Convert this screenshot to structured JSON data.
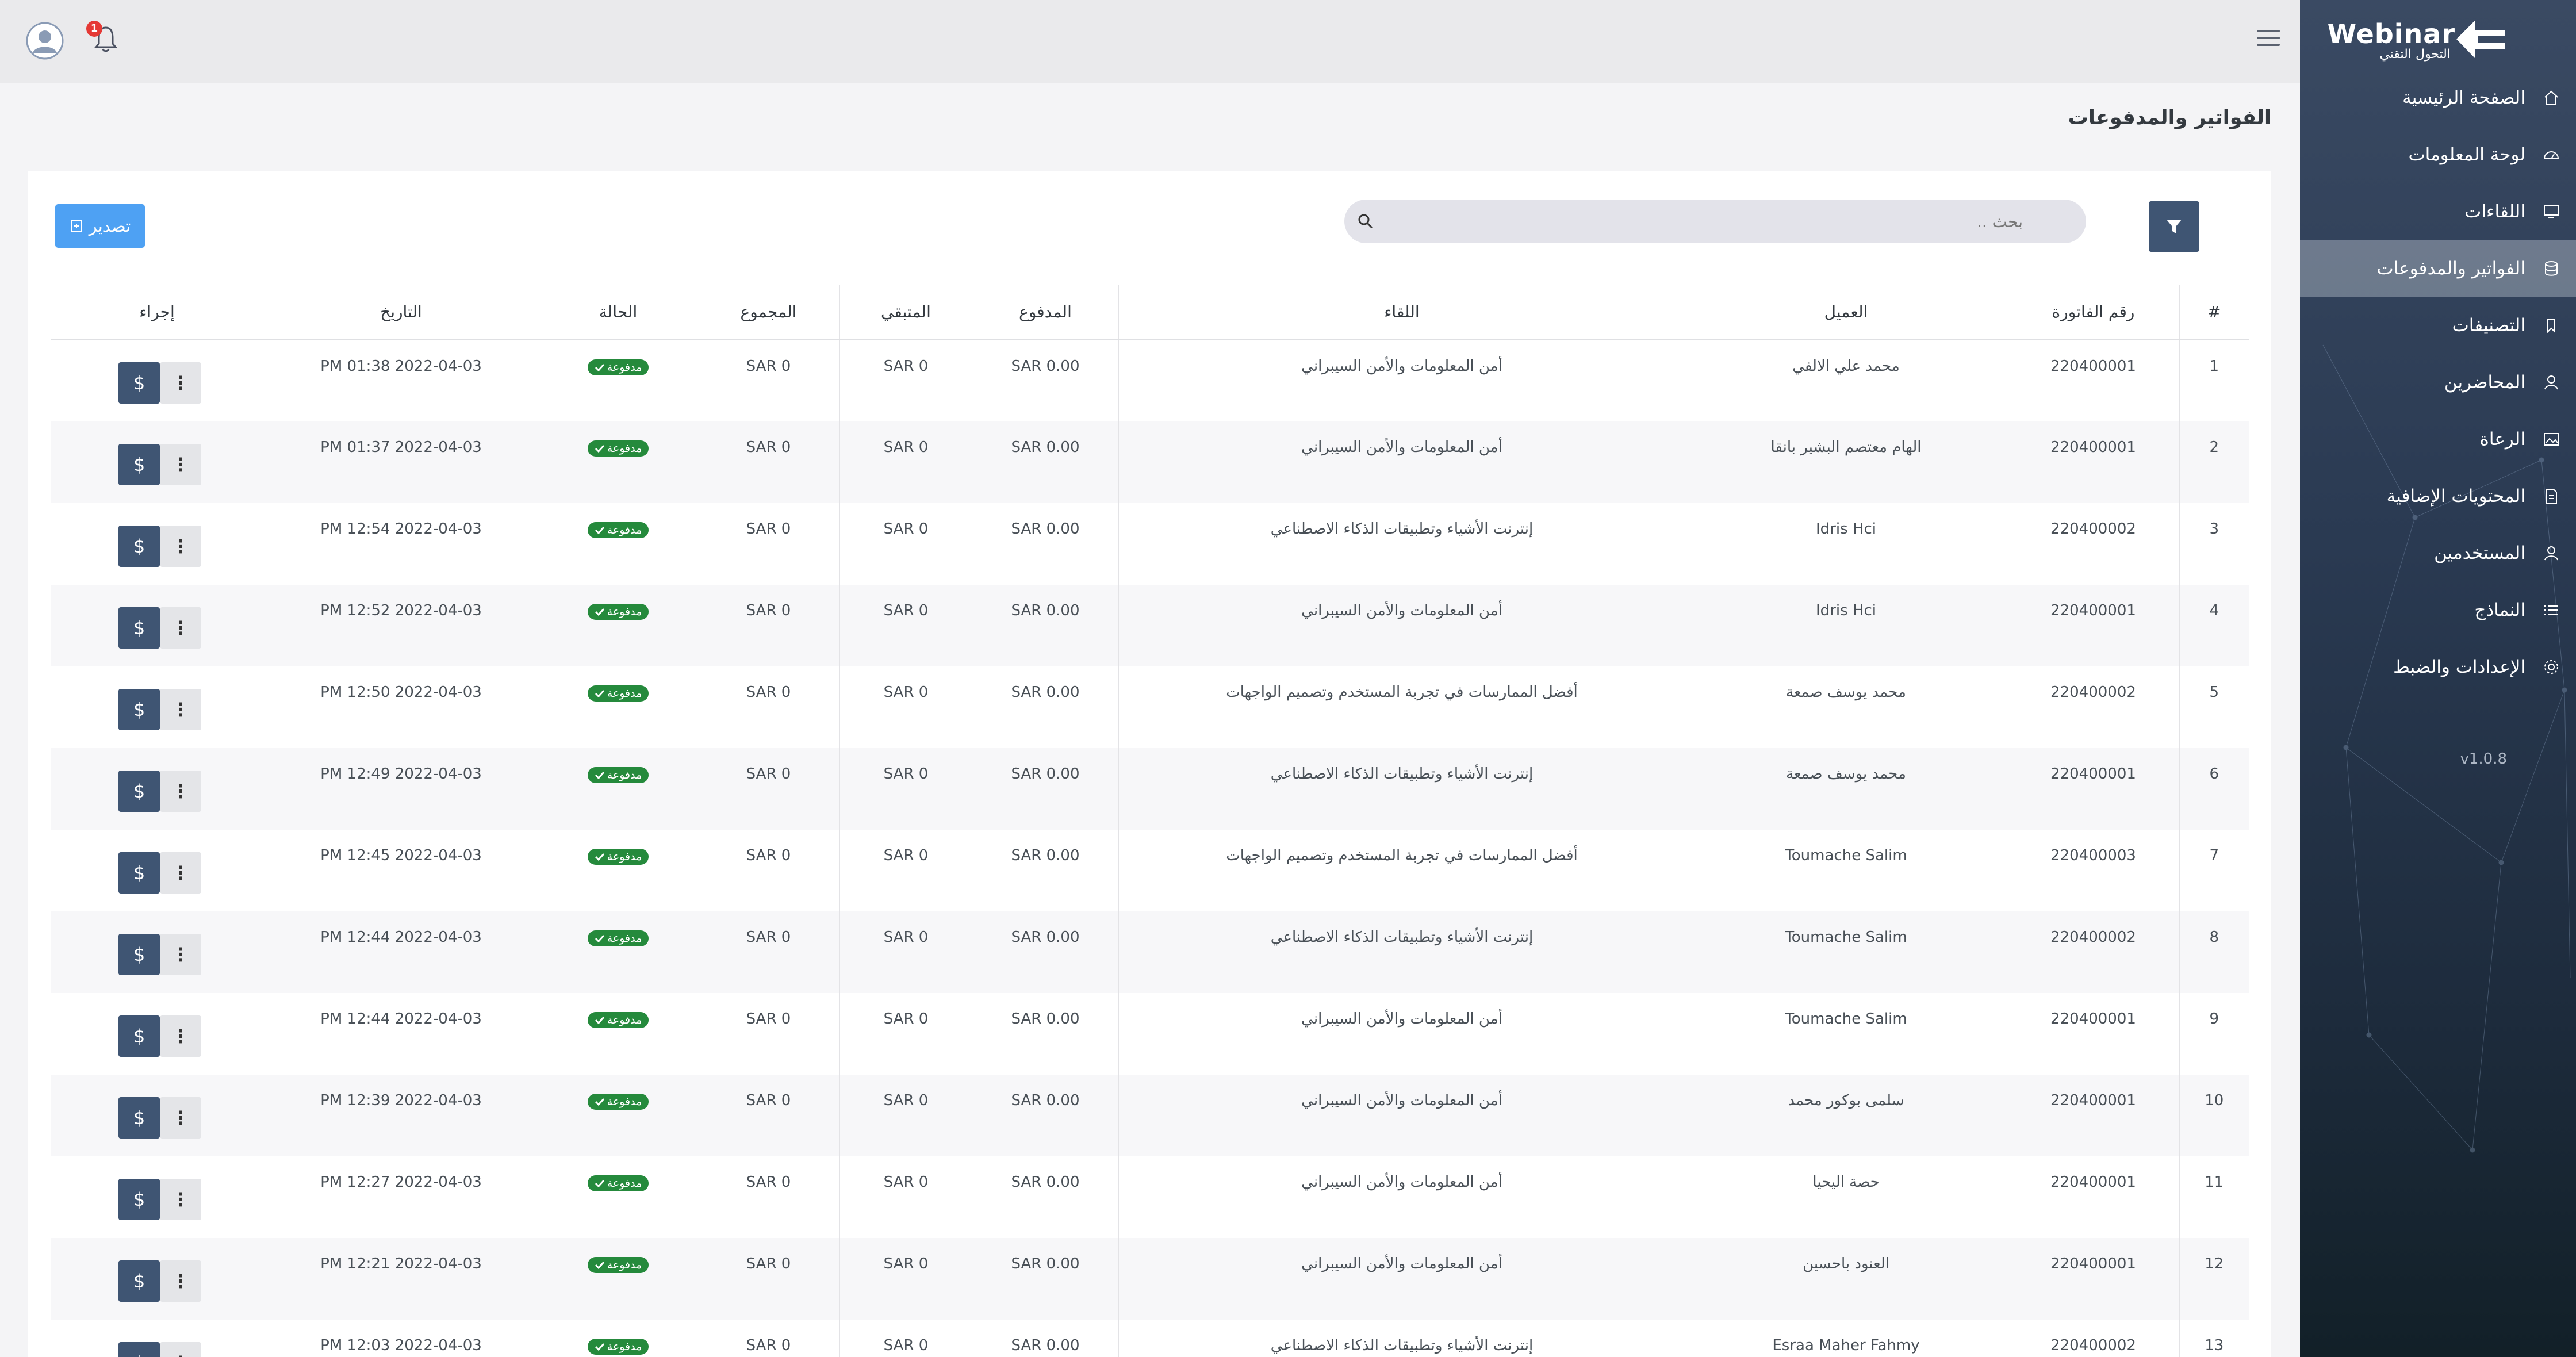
{
  "app": {
    "logo_text": "Webinar",
    "logo_subtext": "التحول التقني",
    "version": "v1.0.8"
  },
  "header": {
    "notification_count": "1"
  },
  "sidebar": {
    "items": [
      {
        "label": "الصفحة الرئيسية",
        "icon": "home-icon"
      },
      {
        "label": "لوحة المعلومات",
        "icon": "dashboard-icon"
      },
      {
        "label": "اللقاءات",
        "icon": "monitor-icon"
      },
      {
        "label": "الفواتير والمدفوعات",
        "icon": "database-icon",
        "active": true
      },
      {
        "label": "التصنيفات",
        "icon": "bookmark-icon"
      },
      {
        "label": "المحاضرين",
        "icon": "user-icon"
      },
      {
        "label": "الرعاة",
        "icon": "image-icon"
      },
      {
        "label": "المحتويات الإضافية",
        "icon": "file-icon"
      },
      {
        "label": "المستخدمين",
        "icon": "user-icon"
      },
      {
        "label": "النماذج",
        "icon": "list-icon"
      },
      {
        "label": "الإعدادات والضبط",
        "icon": "gear-icon"
      }
    ]
  },
  "page": {
    "title": "الفواتير والمدفوعات"
  },
  "toolbar": {
    "search_placeholder": "بحث ..",
    "export_label": "تصدير"
  },
  "table": {
    "columns": [
      "#",
      "رقم الفاتورة",
      "العميل",
      "اللقاء",
      "المدفوع",
      "المتبقي",
      "المجموع",
      "الحالة",
      "التاريخ",
      "إجراء"
    ],
    "status_label": "مدفوعة",
    "rows": [
      {
        "n": "1",
        "invoice": "220400001",
        "client": "محمد علي الالفي",
        "meeting": "أمن المعلومات والأمن السيبراني",
        "paid": "0.00 SAR",
        "remaining": "0 SAR",
        "total": "0 SAR",
        "date": "2022-04-03 01:38 PM"
      },
      {
        "n": "2",
        "invoice": "220400001",
        "client": "الهام معتصم البشير بانقا",
        "meeting": "أمن المعلومات والأمن السيبراني",
        "paid": "0.00 SAR",
        "remaining": "0 SAR",
        "total": "0 SAR",
        "date": "2022-04-03 01:37 PM"
      },
      {
        "n": "3",
        "invoice": "220400002",
        "client": "Idris Hci",
        "meeting": "إنترنت الأشياء وتطبيقات الذكاء الاصطناعي",
        "paid": "0.00 SAR",
        "remaining": "0 SAR",
        "total": "0 SAR",
        "date": "2022-04-03 12:54 PM"
      },
      {
        "n": "4",
        "invoice": "220400001",
        "client": "Idris Hci",
        "meeting": "أمن المعلومات والأمن السيبراني",
        "paid": "0.00 SAR",
        "remaining": "0 SAR",
        "total": "0 SAR",
        "date": "2022-04-03 12:52 PM"
      },
      {
        "n": "5",
        "invoice": "220400002",
        "client": "محمد يوسف صمعة",
        "meeting": "أفضل الممارسات في تجربة المستخدم وتصميم الواجهات",
        "paid": "0.00 SAR",
        "remaining": "0 SAR",
        "total": "0 SAR",
        "date": "2022-04-03 12:50 PM"
      },
      {
        "n": "6",
        "invoice": "220400001",
        "client": "محمد يوسف صمعة",
        "meeting": "إنترنت الأشياء وتطبيقات الذكاء الاصطناعي",
        "paid": "0.00 SAR",
        "remaining": "0 SAR",
        "total": "0 SAR",
        "date": "2022-04-03 12:49 PM"
      },
      {
        "n": "7",
        "invoice": "220400003",
        "client": "Toumache Salim",
        "meeting": "أفضل الممارسات في تجربة المستخدم وتصميم الواجهات",
        "paid": "0.00 SAR",
        "remaining": "0 SAR",
        "total": "0 SAR",
        "date": "2022-04-03 12:45 PM"
      },
      {
        "n": "8",
        "invoice": "220400002",
        "client": "Toumache Salim",
        "meeting": "إنترنت الأشياء وتطبيقات الذكاء الاصطناعي",
        "paid": "0.00 SAR",
        "remaining": "0 SAR",
        "total": "0 SAR",
        "date": "2022-04-03 12:44 PM"
      },
      {
        "n": "9",
        "invoice": "220400001",
        "client": "Toumache Salim",
        "meeting": "أمن المعلومات والأمن السيبراني",
        "paid": "0.00 SAR",
        "remaining": "0 SAR",
        "total": "0 SAR",
        "date": "2022-04-03 12:44 PM"
      },
      {
        "n": "10",
        "invoice": "220400001",
        "client": "سلمى بوكور محمد",
        "meeting": "أمن المعلومات والأمن السيبراني",
        "paid": "0.00 SAR",
        "remaining": "0 SAR",
        "total": "0 SAR",
        "date": "2022-04-03 12:39 PM"
      },
      {
        "n": "11",
        "invoice": "220400001",
        "client": "حصة اليحيا",
        "meeting": "أمن المعلومات والأمن السيبراني",
        "paid": "0.00 SAR",
        "remaining": "0 SAR",
        "total": "0 SAR",
        "date": "2022-04-03 12:27 PM"
      },
      {
        "n": "12",
        "invoice": "220400001",
        "client": "العنود باحسين",
        "meeting": "أمن المعلومات والأمن السيبراني",
        "paid": "0.00 SAR",
        "remaining": "0 SAR",
        "total": "0 SAR",
        "date": "2022-04-03 12:21 PM"
      },
      {
        "n": "13",
        "invoice": "220400002",
        "client": "Esraa Maher Fahmy",
        "meeting": "إنترنت الأشياء وتطبيقات الذكاء الاصطناعي",
        "paid": "0.00 SAR",
        "remaining": "0 SAR",
        "total": "0 SAR",
        "date": "2022-04-03 12:03 PM"
      }
    ]
  },
  "colors": {
    "sidebar": "#2a3a52",
    "primary_button": "#3f5573",
    "export": "#4ea1f3",
    "status_paid": "#258a3c",
    "badge": "#e53935"
  }
}
